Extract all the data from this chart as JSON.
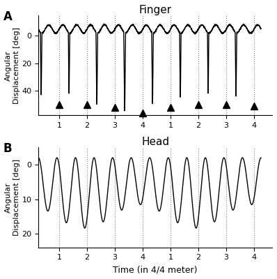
{
  "title_A": "Finger",
  "title_B": "Head",
  "label_A": "A",
  "label_B": "B",
  "ylabel": "Angular\nDisplacement [deg]",
  "xlabel": "Time (in 4/4 meter)",
  "yticks_A": [
    0,
    20,
    40
  ],
  "yticks_B": [
    0,
    10,
    20
  ],
  "ylim_A": [
    -15,
    58
  ],
  "ylim_B": [
    -5,
    24
  ],
  "xtick_labels": [
    "1",
    "2",
    "3",
    "4",
    "1",
    "2",
    "3",
    "4"
  ],
  "bg_color": "#ffffff",
  "line_color": "#000000",
  "dashed_color": "#888888"
}
